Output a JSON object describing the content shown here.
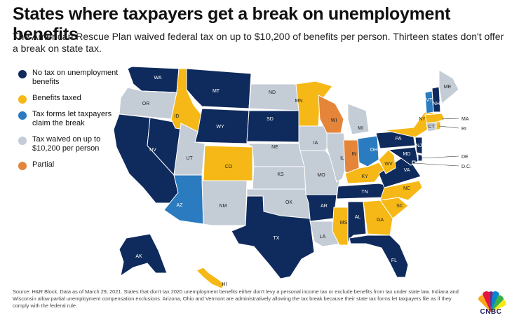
{
  "title": "States where taxpayers get a break on unemployment benefits",
  "subtitle": "The American Rescue Plan waived federal tax on up to $10,200 of benefits per person. Thirteen states don't offer a break on state tax.",
  "colors": {
    "no_tax": "#0f2a5c",
    "taxed": "#f6b816",
    "forms": "#2a7bbf",
    "waived": "#c4ccd6",
    "partial": "#e5853a",
    "border": "#ffffff"
  },
  "legend": [
    {
      "key": "no_tax",
      "label": "No tax on unemployment benefits"
    },
    {
      "key": "taxed",
      "label": "Benefits taxed"
    },
    {
      "key": "forms",
      "label": "Tax forms let taxpayers claim the break"
    },
    {
      "key": "waived",
      "label": "Tax waived on up to $10,200 per person"
    },
    {
      "key": "partial",
      "label": "Partial"
    }
  ],
  "states": {
    "WA": "no_tax",
    "OR": "waived",
    "CA": "no_tax",
    "NV": "no_tax",
    "ID": "taxed",
    "MT": "no_tax",
    "WY": "no_tax",
    "UT": "waived",
    "AZ": "forms",
    "CO": "taxed",
    "NM": "waived",
    "ND": "waived",
    "SD": "no_tax",
    "NE": "waived",
    "KS": "waived",
    "OK": "waived",
    "TX": "no_tax",
    "MN": "taxed",
    "IA": "waived",
    "MO": "waived",
    "AR": "no_tax",
    "LA": "waived",
    "WI": "partial",
    "IL": "waived",
    "MS": "taxed",
    "MI": "waived",
    "IN": "partial",
    "OH": "forms",
    "KY": "taxed",
    "TN": "no_tax",
    "AL": "no_tax",
    "GA": "taxed",
    "FL": "no_tax",
    "SC": "taxed",
    "NC": "taxed",
    "VA": "no_tax",
    "WV": "taxed",
    "PA": "no_tax",
    "NY": "taxed",
    "NJ": "no_tax",
    "DE": "no_tax",
    "MD": "no_tax",
    "DC": "no_tax",
    "CT": "waived",
    "RI": "taxed",
    "MA": "taxed",
    "VT": "forms",
    "NH": "no_tax",
    "ME": "waived",
    "AK": "no_tax",
    "HI": "taxed"
  },
  "outside_labels": [
    "MA",
    "RI",
    "DE",
    "D.C."
  ],
  "source": "Source: H&R Block. Data as of March 29, 2021. States that don't tax 2020 unemployment benefits either don't levy a personal income tax or exclude benefits from tax under state law. Indiana and Wisconsin allow partial unemployment compensation exclusions. Arizona, Ohio and Vermont are administratively allowing the tax break because their state tax forms let taxpayers file as if they comply with the federal rule.",
  "logo_text": "CNBC"
}
